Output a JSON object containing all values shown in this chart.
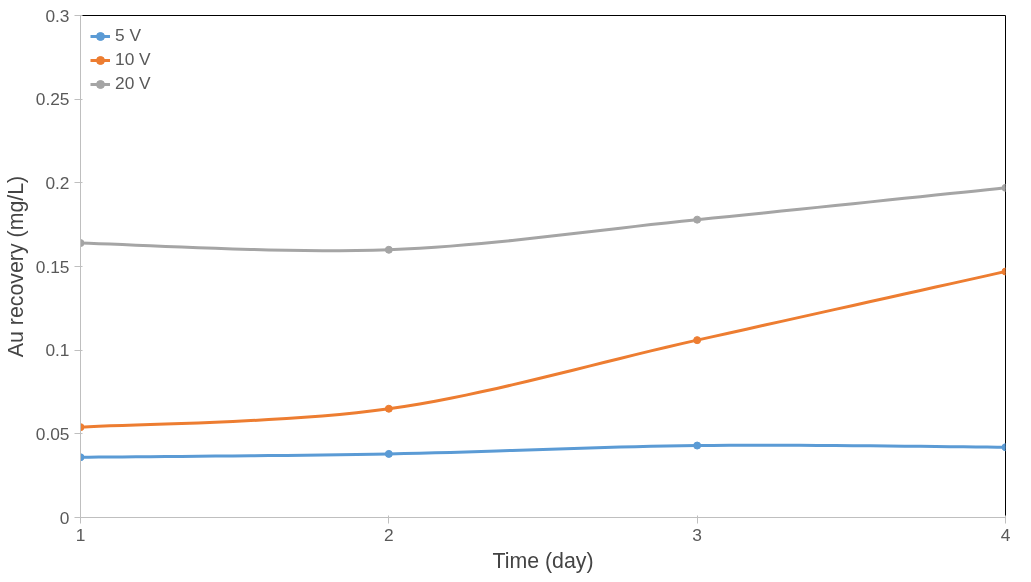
{
  "chart_data": {
    "type": "line",
    "xlabel": "Time (day)",
    "ylabel": "Au recovery (mg/L)",
    "x": [
      1,
      2,
      3,
      4
    ],
    "series": [
      {
        "name": "5 V",
        "color": "#5b9bd5",
        "values": [
          0.036,
          0.038,
          0.043,
          0.042
        ]
      },
      {
        "name": "10 V",
        "color": "#ed7d31",
        "values": [
          0.054,
          0.065,
          0.106,
          0.147
        ]
      },
      {
        "name": "20 V",
        "color": "#a5a5a5",
        "values": [
          0.164,
          0.16,
          0.178,
          0.197
        ]
      }
    ],
    "xlim": [
      1,
      4
    ],
    "xticks": [
      1,
      2,
      3,
      4
    ],
    "ylim": [
      0,
      0.3
    ],
    "yticks": [
      0,
      0.05,
      0.1,
      0.15,
      0.2,
      0.25,
      0.3
    ],
    "grid": false,
    "legend": "top left",
    "marker": "circle",
    "line_style": "solid"
  }
}
